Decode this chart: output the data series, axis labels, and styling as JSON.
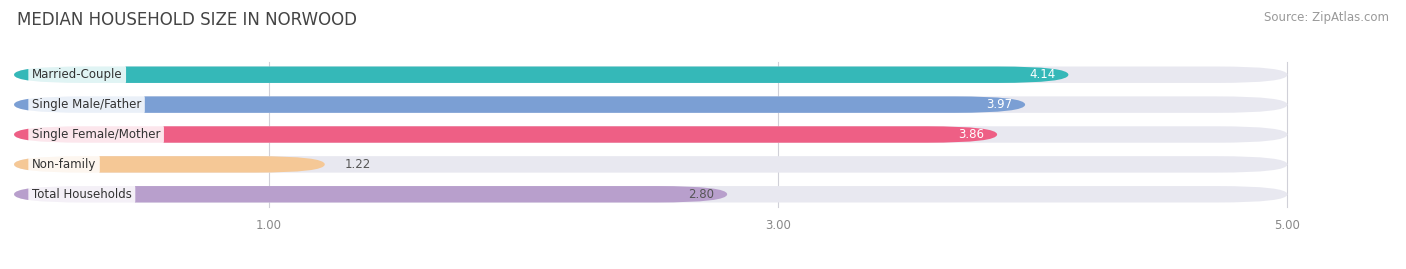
{
  "title": "MEDIAN HOUSEHOLD SIZE IN NORWOOD",
  "source": "Source: ZipAtlas.com",
  "categories": [
    "Married-Couple",
    "Single Male/Father",
    "Single Female/Mother",
    "Non-family",
    "Total Households"
  ],
  "values": [
    4.14,
    3.97,
    3.86,
    1.22,
    2.8
  ],
  "bar_colors": [
    "#35b8b8",
    "#7b9fd4",
    "#ee5f85",
    "#f5c896",
    "#b89fcc"
  ],
  "value_text_colors": [
    "white",
    "white",
    "white",
    "#555555",
    "#555555"
  ],
  "bar_bg_color": "#e8e8f0",
  "xlim_start": 0,
  "xlim_end": 5.3,
  "xaxis_max": 5.0,
  "xticks": [
    1.0,
    3.0,
    5.0
  ],
  "title_fontsize": 12,
  "source_fontsize": 8.5,
  "label_fontsize": 8.5,
  "value_fontsize": 8.5,
  "bar_height": 0.55,
  "background_color": "#ffffff",
  "grid_color": "#d0d0d8"
}
